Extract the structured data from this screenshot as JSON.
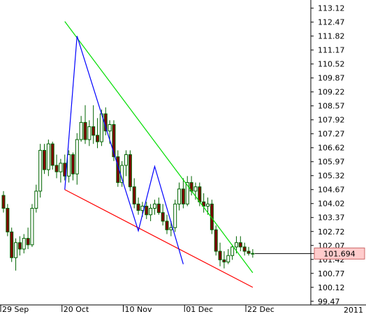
{
  "chart_data": {
    "type": "candlestick",
    "title": "",
    "xlabel": "",
    "ylabel": "",
    "ylim": [
      99.3,
      113.5
    ],
    "y_ticks": [
      "113.12",
      "112.47",
      "111.82",
      "111.17",
      "110.52",
      "109.87",
      "109.22",
      "108.57",
      "107.92",
      "107.27",
      "106.62",
      "105.97",
      "105.32",
      "104.67",
      "104.02",
      "103.37",
      "102.72",
      "102.07",
      "101.42",
      "100.77",
      "100.12",
      "99.47"
    ],
    "x_ticks": [
      {
        "label": "29 Sep",
        "index": 0
      },
      {
        "label": "20 Oct",
        "index": 15
      },
      {
        "label": "10 Nov",
        "index": 30
      },
      {
        "label": "01 Dec",
        "index": 45
      },
      {
        "label": "22 Dec",
        "index": 60
      }
    ],
    "year_label": "2011",
    "current_price": "101.694",
    "candles": [
      [
        104.4,
        104.6,
        103.6,
        103.8
      ],
      [
        103.8,
        104.0,
        102.5,
        102.7
      ],
      [
        102.7,
        102.9,
        101.3,
        101.5
      ],
      [
        101.5,
        102.4,
        100.9,
        102.2
      ],
      [
        102.2,
        102.5,
        101.6,
        101.9
      ],
      [
        101.9,
        102.6,
        101.7,
        102.4
      ],
      [
        102.4,
        102.9,
        101.9,
        102.1
      ],
      [
        102.1,
        104.0,
        102.0,
        103.8
      ],
      [
        103.8,
        104.9,
        103.6,
        104.6
      ],
      [
        104.6,
        106.8,
        104.3,
        106.5
      ],
      [
        106.5,
        106.8,
        105.4,
        105.6
      ],
      [
        105.6,
        107.0,
        105.3,
        106.8
      ],
      [
        106.8,
        106.9,
        105.6,
        105.8
      ],
      [
        105.8,
        106.3,
        105.2,
        105.5
      ],
      [
        105.5,
        106.1,
        105.0,
        105.9
      ],
      [
        105.9,
        106.3,
        105.1,
        105.3
      ],
      [
        105.3,
        106.5,
        105.0,
        106.3
      ],
      [
        106.3,
        106.4,
        105.1,
        105.4
      ],
      [
        105.4,
        107.3,
        104.9,
        107.0
      ],
      [
        107.0,
        108.1,
        106.9,
        107.8
      ],
      [
        107.8,
        108.6,
        106.8,
        107.0
      ],
      [
        107.0,
        107.9,
        106.7,
        107.6
      ],
      [
        107.6,
        108.6,
        106.8,
        107.2
      ],
      [
        107.2,
        108.0,
        106.6,
        106.9
      ],
      [
        106.9,
        108.4,
        106.7,
        108.2
      ],
      [
        108.2,
        108.5,
        107.2,
        107.4
      ],
      [
        107.4,
        107.9,
        106.8,
        107.7
      ],
      [
        107.7,
        107.9,
        106.0,
        106.2
      ],
      [
        106.2,
        106.5,
        104.8,
        105.0
      ],
      [
        105.0,
        106.0,
        104.8,
        105.8
      ],
      [
        105.8,
        106.5,
        105.3,
        106.3
      ],
      [
        106.3,
        106.5,
        104.6,
        104.8
      ],
      [
        104.8,
        105.2,
        103.8,
        104.0
      ],
      [
        104.0,
        104.3,
        103.5,
        103.7
      ],
      [
        103.7,
        104.1,
        103.4,
        103.9
      ],
      [
        103.9,
        104.1,
        103.3,
        103.5
      ],
      [
        103.5,
        104.0,
        103.2,
        103.8
      ],
      [
        103.8,
        104.2,
        103.5,
        104.0
      ],
      [
        104.0,
        104.3,
        103.5,
        103.6
      ],
      [
        103.6,
        104.0,
        103.0,
        103.2
      ],
      [
        103.2,
        103.5,
        102.6,
        102.8
      ],
      [
        102.8,
        103.2,
        102.5,
        102.9
      ],
      [
        102.9,
        104.2,
        102.7,
        104.0
      ],
      [
        104.0,
        105.0,
        103.7,
        104.7
      ],
      [
        104.7,
        105.2,
        103.8,
        104.0
      ],
      [
        104.0,
        105.3,
        103.9,
        105.0
      ],
      [
        105.0,
        105.3,
        104.4,
        104.6
      ],
      [
        104.6,
        105.0,
        104.2,
        104.8
      ],
      [
        104.8,
        105.0,
        103.9,
        104.1
      ],
      [
        104.1,
        104.5,
        103.6,
        103.9
      ],
      [
        103.9,
        104.3,
        103.5,
        104.0
      ],
      [
        104.0,
        104.2,
        102.6,
        102.8
      ],
      [
        102.8,
        103.0,
        101.6,
        101.8
      ],
      [
        101.8,
        102.2,
        101.1,
        101.4
      ],
      [
        101.4,
        101.8,
        101.0,
        101.3
      ],
      [
        101.3,
        101.9,
        101.2,
        101.6
      ],
      [
        101.6,
        102.1,
        101.4,
        102.0
      ],
      [
        102.0,
        102.5,
        101.7,
        102.2
      ],
      [
        102.2,
        102.5,
        101.8,
        102.0
      ],
      [
        102.0,
        102.2,
        101.6,
        101.8
      ],
      [
        101.8,
        102.0,
        101.6,
        101.7
      ],
      [
        101.7,
        101.9,
        101.5,
        101.69
      ]
    ],
    "lines": [
      {
        "name": "",
        "color": "#00dd00",
        "points": [
          [
            15,
            112.5
          ],
          [
            61,
            100.8
          ]
        ]
      },
      {
        "name": "",
        "color": "#ff0000",
        "points": [
          [
            15,
            104.67
          ],
          [
            61,
            100.12
          ]
        ]
      },
      {
        "name": "",
        "color": "#0000ff",
        "points": [
          [
            15,
            104.67
          ],
          [
            18,
            111.82
          ],
          [
            33,
            102.75
          ],
          [
            37,
            105.75
          ],
          [
            44,
            101.2
          ]
        ]
      }
    ],
    "colors": {
      "up_fill": "#ffffff",
      "down_fill": "#800000",
      "wick": "#006400",
      "price_box_fill": "#ffcccc",
      "price_box_stroke": "#cc6666"
    }
  }
}
